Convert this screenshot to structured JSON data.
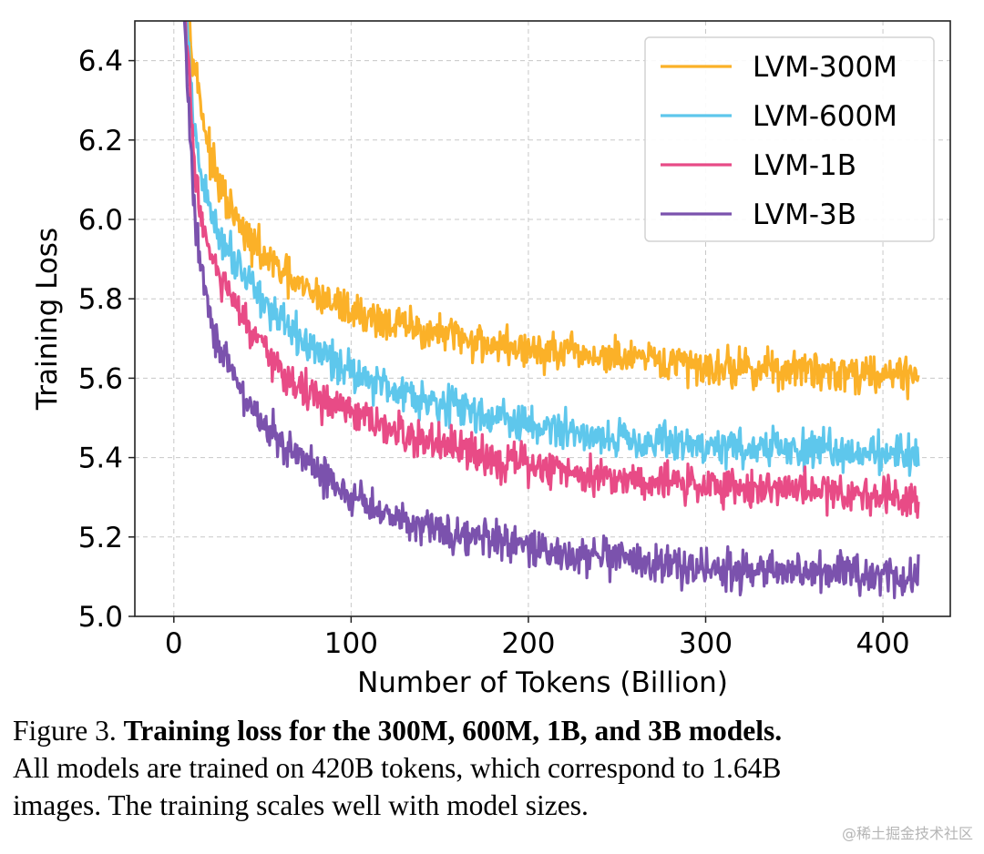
{
  "chart_data": {
    "type": "line",
    "xlabel": "Number of Tokens (Billion)",
    "ylabel": "Training Loss",
    "xlim": [
      -22,
      438
    ],
    "ylim": [
      5.0,
      6.5
    ],
    "xticks": [
      0,
      100,
      200,
      300,
      400
    ],
    "yticks": [
      5.0,
      5.2,
      5.4,
      5.6,
      5.8,
      6.0,
      6.2,
      6.4
    ],
    "xtick_labels": [
      "0",
      "100",
      "200",
      "300",
      "400"
    ],
    "ytick_labels": [
      "5.0",
      "5.2",
      "5.4",
      "5.6",
      "5.8",
      "6.0",
      "6.2",
      "6.4"
    ],
    "grid": true,
    "legend_position": "top-right",
    "x": [
      6,
      8,
      10,
      12,
      15,
      18,
      21,
      25,
      30,
      35,
      40,
      50,
      60,
      70,
      80,
      100,
      120,
      150,
      200,
      250,
      300,
      350,
      420
    ],
    "series": [
      {
        "name": "LVM-300M",
        "color": "#fbb128",
        "noise": 0.03,
        "values": [
          6.6,
          6.55,
          6.45,
          6.38,
          6.3,
          6.22,
          6.15,
          6.09,
          6.04,
          6.0,
          5.96,
          5.91,
          5.87,
          5.83,
          5.81,
          5.77,
          5.74,
          5.71,
          5.67,
          5.65,
          5.63,
          5.62,
          5.61
        ]
      },
      {
        "name": "LVM-600M",
        "color": "#5ec7ec",
        "noise": 0.03,
        "values": [
          6.6,
          6.45,
          6.3,
          6.2,
          6.12,
          6.06,
          6.02,
          5.97,
          5.93,
          5.9,
          5.87,
          5.8,
          5.74,
          5.7,
          5.67,
          5.62,
          5.58,
          5.54,
          5.48,
          5.45,
          5.43,
          5.42,
          5.41
        ]
      },
      {
        "name": "LVM-1B",
        "color": "#e84b86",
        "noise": 0.03,
        "values": [
          6.55,
          6.4,
          6.25,
          6.12,
          6.02,
          5.96,
          5.9,
          5.86,
          5.82,
          5.78,
          5.74,
          5.67,
          5.62,
          5.58,
          5.55,
          5.51,
          5.47,
          5.43,
          5.38,
          5.35,
          5.33,
          5.32,
          5.3
        ]
      },
      {
        "name": "LVM-3B",
        "color": "#7b52ad",
        "noise": 0.03,
        "values": [
          6.5,
          6.3,
          6.15,
          6.0,
          5.9,
          5.82,
          5.75,
          5.69,
          5.64,
          5.59,
          5.55,
          5.49,
          5.44,
          5.4,
          5.37,
          5.3,
          5.26,
          5.22,
          5.17,
          5.14,
          5.12,
          5.11,
          5.1
        ]
      }
    ]
  },
  "caption": {
    "label": "Figure 3.",
    "bold": "Training loss for the 300M, 600M, 1B, and 3B models.",
    "line2": "All models are trained on 420B tokens, which correspond to 1.64B",
    "line3": "images. The training scales well with model sizes."
  },
  "watermark": "@稀土掘金技术社区"
}
